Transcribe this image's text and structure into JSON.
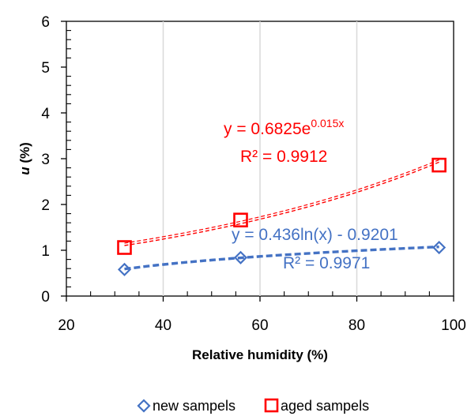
{
  "chart_data": {
    "type": "scatter",
    "xlabel": "Relative humidity (%)",
    "ylabel": "u",
    "ylabel_unit": " (%)",
    "xlim": [
      20,
      100
    ],
    "ylim": [
      0,
      6
    ],
    "x_ticks": [
      20,
      40,
      60,
      80,
      100
    ],
    "y_ticks": [
      0,
      1,
      2,
      3,
      4,
      5,
      6
    ],
    "grid": "vertical",
    "legend_position": "bottom",
    "series": [
      {
        "name": "new sampels",
        "color": "#4472C4",
        "marker": "diamond",
        "x": [
          32,
          56,
          97
        ],
        "y": [
          0.58,
          0.84,
          1.06
        ],
        "trendline": {
          "type": "log",
          "a": 0.436,
          "b": -0.9201,
          "equation": "y = 0.436ln(x) - 0.9201",
          "r2": "R² = 0.9971"
        }
      },
      {
        "name": "aged sampels",
        "color": "#FF0000",
        "marker": "square",
        "x": [
          32,
          56,
          97
        ],
        "y": [
          1.06,
          1.66,
          2.86
        ],
        "trendline": {
          "type": "exp",
          "a": 0.6825,
          "b": 0.015,
          "equation_base": "y = 0.6825e",
          "equation_exp": "0.015x",
          "r2": "R² = 0.9912"
        }
      }
    ]
  }
}
